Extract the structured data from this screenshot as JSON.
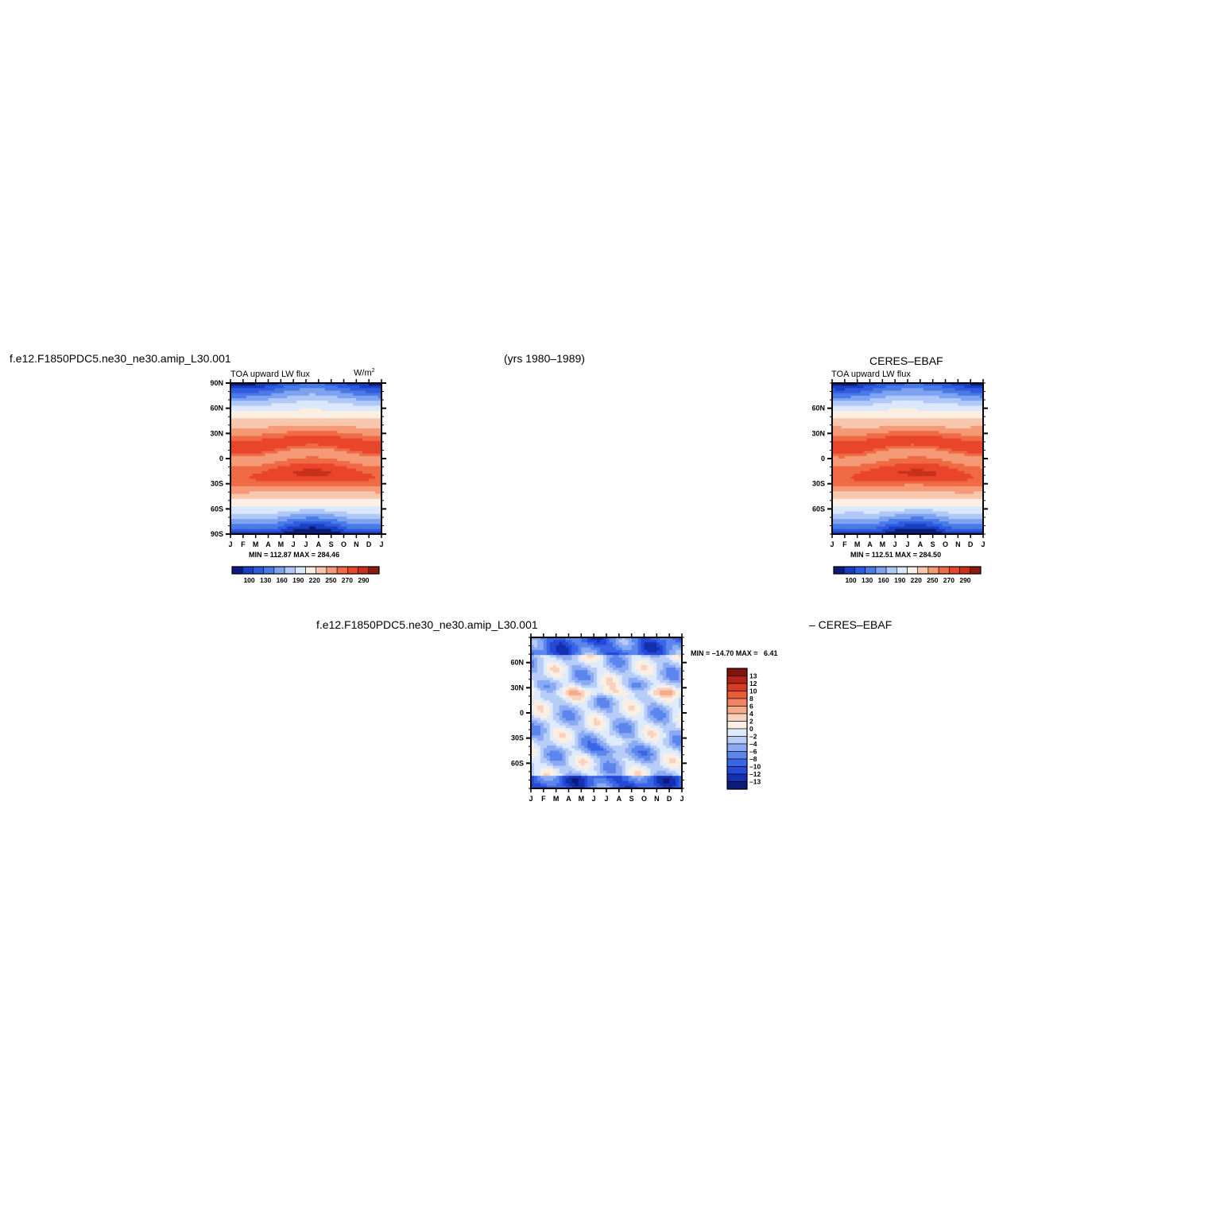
{
  "header": {
    "case_name": "f.e12.F1850PDC5.ne30_ne30.amip_L30.001",
    "years": "(yrs 1980–1989)",
    "obs_name": "CERES–EBAF"
  },
  "diff_header": {
    "case_name": "f.e12.F1850PDC5.ne30_ne30.amip_L30.001",
    "obs_name": "– CERES–EBAF"
  },
  "colors": {
    "abs_scale": [
      "#0a1b7a",
      "#1a3ec0",
      "#2f5be0",
      "#4a7ae8",
      "#7da2f0",
      "#afc8f8",
      "#dbe8fc",
      "#fbefe4",
      "#f8c7ad",
      "#f49a77",
      "#ef6a45",
      "#e9452a",
      "#c8301c",
      "#8b1a12"
    ],
    "diff_scale": [
      "#0a1b7a",
      "#142fb0",
      "#2449d8",
      "#3a66e6",
      "#5c86ee",
      "#8aaaf3",
      "#b7cdf8",
      "#deeafd",
      "#fbefe4",
      "#f9d2bd",
      "#f5ab8b",
      "#f08563",
      "#ea5c38",
      "#d83b20",
      "#b32414",
      "#7e140c"
    ]
  },
  "chart_data": [
    {
      "type": "heatmap",
      "panel": "model",
      "title": "TOA upward LW flux",
      "units": "W/m²",
      "units_base": "W/m",
      "units_sup": "2",
      "x_ticklabels": [
        "J",
        "F",
        "M",
        "A",
        "M",
        "J",
        "J",
        "A",
        "S",
        "O",
        "N",
        "D",
        "J"
      ],
      "y_ticklabels": [
        "90N",
        "60N",
        "30N",
        "0",
        "30S",
        "60S",
        "90S"
      ],
      "y_values": [
        90,
        60,
        30,
        0,
        -30,
        -60,
        -90
      ],
      "stats": "MIN = 112.87  MAX = 284.46",
      "min": 112.87,
      "max": 284.46,
      "colorbar_labels": [
        "100",
        "130",
        "160",
        "190",
        "220",
        "250",
        "270",
        "290"
      ],
      "colorbar_orientation": "horizontal"
    },
    {
      "type": "heatmap",
      "panel": "observation",
      "title": "TOA upward LW flux",
      "x_ticklabels": [
        "J",
        "F",
        "M",
        "A",
        "M",
        "J",
        "J",
        "A",
        "S",
        "O",
        "N",
        "D",
        "J"
      ],
      "y_ticklabels": [
        "60N",
        "30N",
        "0",
        "30S",
        "60S"
      ],
      "y_values": [
        60,
        30,
        0,
        -30,
        -60
      ],
      "stats": "MIN = 112.51  MAX = 284.50",
      "min": 112.51,
      "max": 284.5,
      "colorbar_labels": [
        "100",
        "130",
        "160",
        "190",
        "220",
        "250",
        "270",
        "290"
      ],
      "colorbar_orientation": "horizontal"
    },
    {
      "type": "heatmap",
      "panel": "difference",
      "x_ticklabels": [
        "J",
        "F",
        "M",
        "A",
        "M",
        "J",
        "J",
        "A",
        "S",
        "O",
        "N",
        "D",
        "J"
      ],
      "y_ticklabels": [
        "60N",
        "30N",
        "0",
        "30S",
        "60S"
      ],
      "y_values": [
        60,
        30,
        0,
        -30,
        -60
      ],
      "stats": "MIN = –14.70 MAX =   6.41",
      "min": -14.7,
      "max": 6.41,
      "colorbar_labels": [
        "13",
        "12",
        "10",
        "8",
        "6",
        "4",
        "2",
        "0",
        "–2",
        "–4",
        "–6",
        "–8",
        "–10",
        "–12",
        "–13"
      ],
      "colorbar_orientation": "vertical"
    }
  ]
}
